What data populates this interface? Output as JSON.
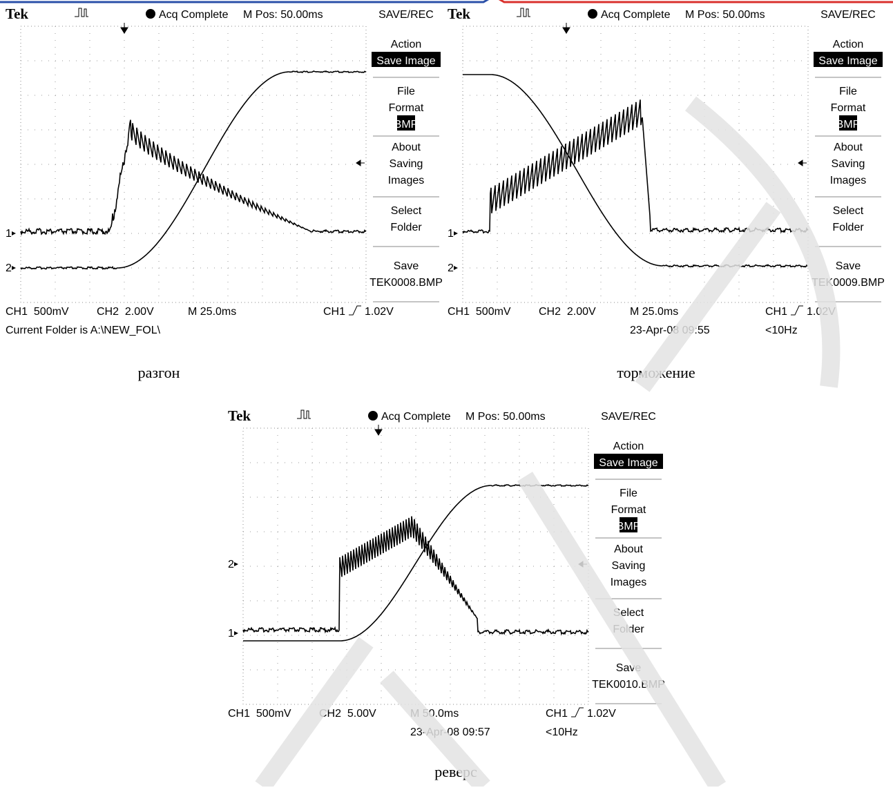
{
  "panels": [
    {
      "header": {
        "brand": "Tek",
        "status": "Acq Complete",
        "position": "M Pos: 50.00ms",
        "menu_title": "SAVE/REC"
      },
      "menu": [
        {
          "lines": [
            "Action"
          ],
          "selected": "Save Image"
        },
        {
          "lines": [
            "File",
            "Format"
          ],
          "selected": "BMP"
        },
        {
          "lines": [
            "About",
            "Saving",
            "Images"
          ]
        },
        {
          "lines": [
            "Select",
            "Folder"
          ]
        },
        {
          "lines": [
            "Save",
            "TEK0008.BMP"
          ]
        }
      ],
      "channel_markers": [
        "1",
        "2"
      ],
      "footer": {
        "ch1": "CH1  500mV",
        "ch2": "CH2  2.00V",
        "time": "M 25.0ms",
        "trigger_source": "CH1",
        "trigger_level": "1.02V",
        "status_line": "Current Folder is A:\\NEW_FOL\\"
      },
      "caption": "разгон"
    },
    {
      "header": {
        "brand": "Tek",
        "status": "Acq Complete",
        "position": "M Pos: 50.00ms",
        "menu_title": "SAVE/REC"
      },
      "menu": [
        {
          "lines": [
            "Action"
          ],
          "selected": "Save Image"
        },
        {
          "lines": [
            "File",
            "Format"
          ],
          "selected": "BMP"
        },
        {
          "lines": [
            "About",
            "Saving",
            "Images"
          ]
        },
        {
          "lines": [
            "Select",
            "Folder"
          ]
        },
        {
          "lines": [
            "Save",
            "TEK0009.BMP"
          ]
        }
      ],
      "channel_markers": [
        "1",
        "2"
      ],
      "footer": {
        "ch1": "CH1  500mV",
        "ch2": "CH2  2.00V",
        "time": "M 25.0ms",
        "trigger_source": "CH1",
        "trigger_level": "1.02V",
        "date": "23-Apr-08 09:55",
        "frequency": "<10Hz"
      },
      "caption": "торможение"
    },
    {
      "header": {
        "brand": "Tek",
        "status": "Acq Complete",
        "position": "M Pos: 50.00ms",
        "menu_title": "SAVE/REC"
      },
      "menu": [
        {
          "lines": [
            "Action"
          ],
          "selected": "Save Image"
        },
        {
          "lines": [
            "File",
            "Format"
          ],
          "selected": "BMP"
        },
        {
          "lines": [
            "About",
            "Saving",
            "Images"
          ]
        },
        {
          "lines": [
            "Select",
            "Folder"
          ]
        },
        {
          "lines": [
            "Save",
            "TEK0010.BMP"
          ]
        }
      ],
      "channel_markers": [
        "1",
        "2"
      ],
      "footer": {
        "ch1": "CH1  500mV",
        "ch2": "CH2  5.00V",
        "time": "M 50.0ms",
        "trigger_source": "CH1",
        "trigger_level": "1.02V",
        "date": "23-Apr-08 09:57",
        "frequency": "<10Hz"
      },
      "caption": "реверс"
    }
  ]
}
